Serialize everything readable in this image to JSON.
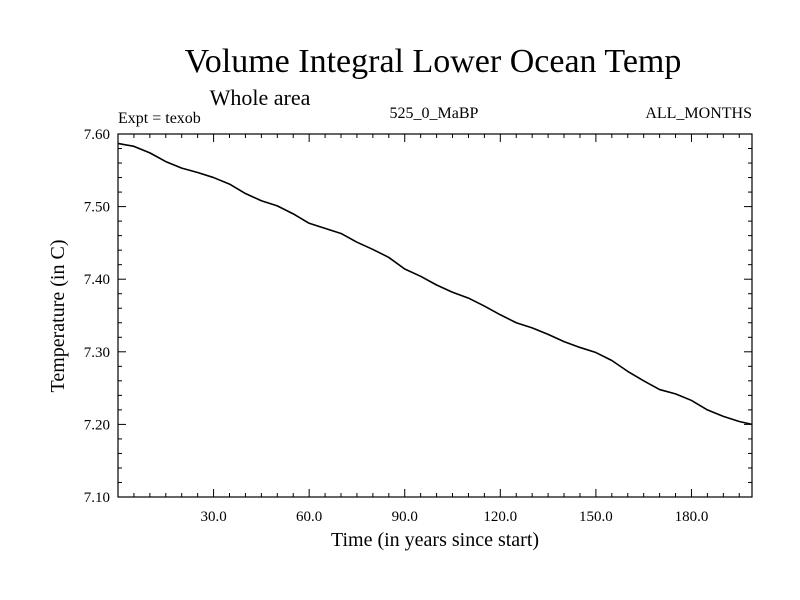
{
  "chart_data": {
    "type": "line",
    "title": "Volume Integral Lower Ocean Temp",
    "subtitle": "Whole area",
    "info_left": "Expt = texob",
    "info_center": "525_0_MaBP",
    "info_right": "ALL_MONTHS",
    "xlabel": "Time (in years since start)",
    "ylabel": "Temperature (in C)",
    "xlim": [
      0,
      199
    ],
    "ylim": [
      7.1,
      7.6
    ],
    "x_ticks": [
      30,
      60,
      90,
      120,
      150,
      180
    ],
    "x_tick_labels": [
      "30.0",
      "60.0",
      "90.0",
      "120.0",
      "150.0",
      "180.0"
    ],
    "y_ticks": [
      7.1,
      7.2,
      7.3,
      7.4,
      7.5,
      7.6
    ],
    "y_tick_labels": [
      "7.10",
      "7.20",
      "7.30",
      "7.40",
      "7.50",
      "7.60"
    ],
    "line_color": "#000000",
    "series": [
      {
        "name": "texob",
        "x": [
          0,
          5,
          10,
          15,
          20,
          25,
          30,
          35,
          40,
          45,
          50,
          55,
          60,
          65,
          70,
          75,
          80,
          85,
          90,
          95,
          100,
          105,
          110,
          115,
          120,
          125,
          130,
          135,
          140,
          145,
          150,
          155,
          160,
          165,
          170,
          175,
          180,
          185,
          190,
          195,
          199
        ],
        "values": [
          7.587,
          7.583,
          7.574,
          7.562,
          7.553,
          7.547,
          7.54,
          7.531,
          7.518,
          7.508,
          7.501,
          7.49,
          7.477,
          7.47,
          7.463,
          7.451,
          7.441,
          7.43,
          7.414,
          7.404,
          7.392,
          7.382,
          7.374,
          7.363,
          7.351,
          7.34,
          7.333,
          7.324,
          7.314,
          7.306,
          7.299,
          7.288,
          7.273,
          7.26,
          7.248,
          7.242,
          7.233,
          7.22,
          7.211,
          7.204,
          7.2
        ]
      }
    ]
  }
}
